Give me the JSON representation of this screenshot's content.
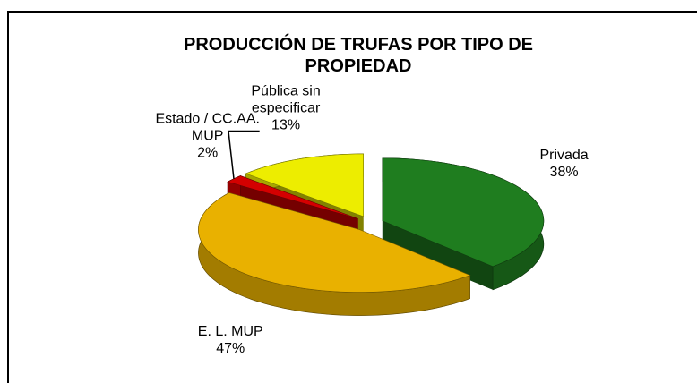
{
  "chart_data": {
    "type": "pie3d",
    "title": "PRODUCCIÓN DE TRUFAS POR TIPO DE PROPIEDAD",
    "categories": [
      "Privada",
      "E. L. MUP",
      "Estado / CC.AA. MUP",
      "Pública sin especificar"
    ],
    "values": [
      38,
      47,
      2,
      13
    ],
    "value_labels": [
      "38%",
      "47%",
      "2%",
      "13%"
    ],
    "colors": [
      "#1f7d1f",
      "#e9b100",
      "#d40000",
      "#eded00"
    ]
  }
}
